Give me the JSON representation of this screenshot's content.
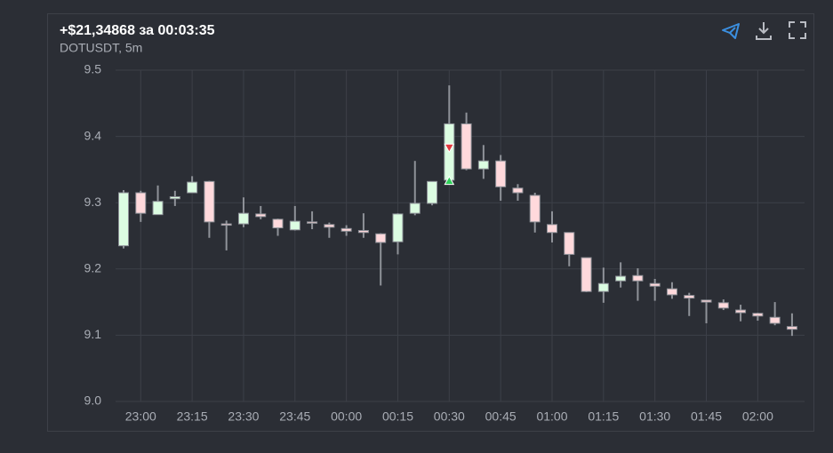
{
  "header": {
    "title": "+$21,34868 за 00:03:35",
    "subtitle": "DOTUSDT, 5m"
  },
  "chart_data": {
    "type": "candlestick",
    "categories": [
      null,
      "23:00",
      null,
      null,
      "23:15",
      null,
      null,
      "23:30",
      null,
      null,
      "23:45",
      null,
      null,
      "00:00",
      null,
      null,
      "00:15",
      null,
      null,
      "00:30",
      null,
      null,
      "00:45",
      null,
      null,
      "01:00",
      null,
      null,
      "01:15",
      null,
      null,
      "01:30",
      null,
      null,
      "01:45",
      null,
      null,
      "02:00",
      null,
      null
    ],
    "open": [
      9.235,
      9.315,
      9.282,
      9.306,
      9.315,
      9.332,
      9.268,
      9.268,
      9.283,
      9.275,
      9.259,
      9.271,
      9.267,
      9.261,
      9.258,
      9.253,
      9.241,
      9.284,
      9.299,
      9.334,
      9.419,
      9.351,
      9.363,
      9.322,
      9.311,
      9.267,
      9.255,
      9.217,
      9.166,
      9.182,
      9.19,
      9.178,
      9.17,
      9.16,
      9.153,
      9.149,
      9.138,
      9.133,
      9.127,
      9.113
    ],
    "high": [
      9.319,
      9.318,
      9.326,
      9.318,
      9.34,
      9.333,
      9.273,
      9.308,
      9.295,
      9.276,
      9.295,
      9.287,
      9.27,
      9.266,
      9.284,
      9.254,
      9.284,
      9.363,
      9.332,
      9.477,
      9.436,
      9.387,
      9.372,
      9.328,
      9.315,
      9.287,
      9.255,
      9.217,
      9.202,
      9.21,
      9.201,
      9.185,
      9.18,
      9.164,
      9.153,
      9.154,
      9.146,
      9.134,
      9.15,
      9.133
    ],
    "low": [
      9.231,
      9.271,
      9.282,
      9.295,
      9.315,
      9.247,
      9.228,
      9.263,
      9.275,
      9.25,
      9.258,
      9.26,
      9.247,
      9.25,
      9.247,
      9.175,
      9.222,
      9.281,
      9.296,
      9.332,
      9.349,
      9.336,
      9.303,
      9.303,
      9.255,
      9.24,
      9.204,
      9.165,
      9.149,
      9.172,
      9.152,
      9.152,
      9.155,
      9.129,
      9.118,
      9.138,
      9.121,
      9.122,
      9.115,
      9.099
    ],
    "close": [
      9.315,
      9.284,
      9.302,
      9.309,
      9.331,
      9.271,
      9.266,
      9.284,
      9.279,
      9.262,
      9.272,
      9.269,
      9.263,
      9.257,
      9.255,
      9.24,
      9.283,
      9.299,
      9.332,
      9.419,
      9.351,
      9.363,
      9.324,
      9.315,
      9.271,
      9.255,
      9.222,
      9.166,
      9.178,
      9.189,
      9.182,
      9.174,
      9.161,
      9.156,
      9.15,
      9.141,
      9.134,
      9.129,
      9.118,
      9.109
    ],
    "up_color": "#dcfde2",
    "down_color": "#ffd9dc",
    "wick_color": "#8f9299",
    "markers": [
      {
        "direction": "down",
        "at": 19,
        "value": 9.383,
        "color": "#e0393e"
      },
      {
        "direction": "up",
        "at": 19,
        "value": 9.333,
        "color": "#2fd05a"
      }
    ],
    "ylim": [
      9,
      9.5
    ],
    "yticks": [
      {
        "value": 9,
        "label": "9.0"
      },
      9.1,
      9.2,
      9.3,
      9.4,
      9.5
    ],
    "grid": true
  }
}
